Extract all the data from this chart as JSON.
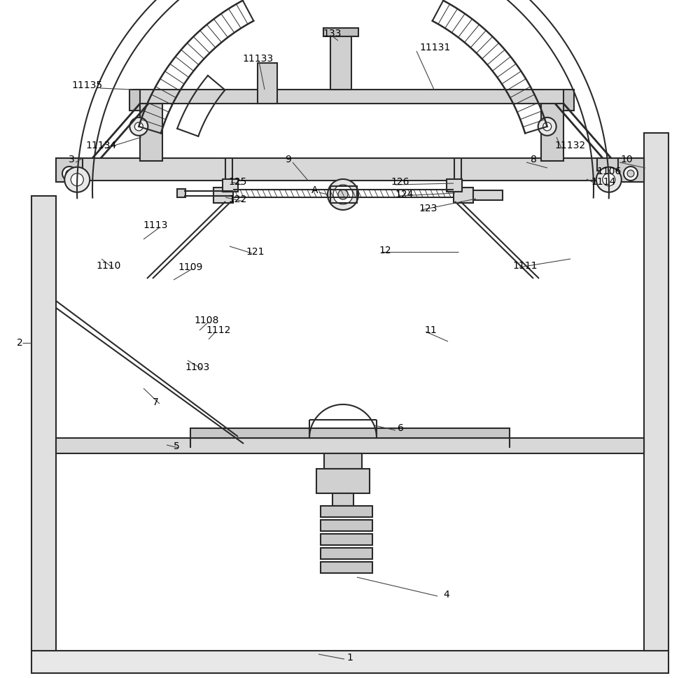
{
  "bg_color": "#ffffff",
  "lc": "#2a2a2a",
  "lw": 1.5,
  "tlw": 0.9,
  "fs": 10
}
